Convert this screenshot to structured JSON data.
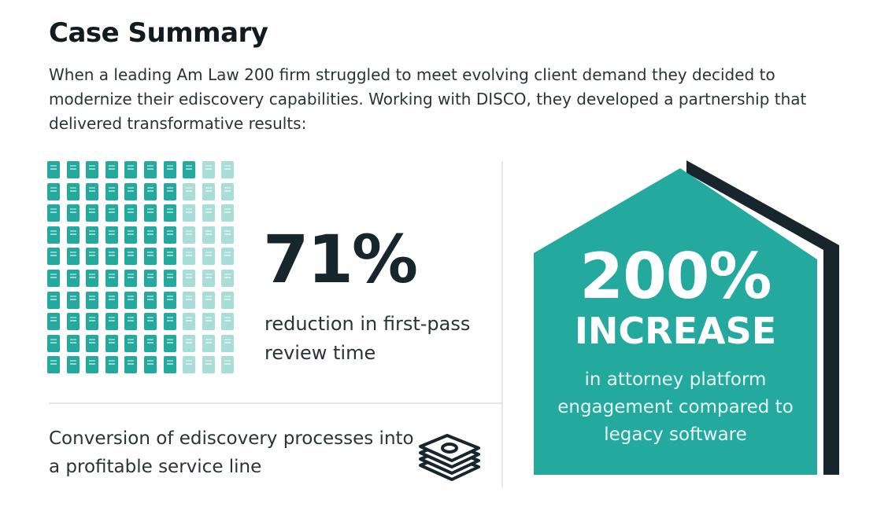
{
  "title": "Case Summary",
  "intro": "When a leading Am Law 200 firm struggled to meet evolving client demand they decided to modernize their ediscovery capabilities. Working with DISCO, they developed a partnership that delivered transformative results:",
  "stat1": {
    "value": "71%",
    "description": "reduction in first-pass review time",
    "grid_percent": 71
  },
  "stat2": {
    "description": "Conversion of ediscovery processes into a profitable service line",
    "icon": "money-stack-icon"
  },
  "stat3": {
    "value": "200%",
    "headline": "INCREASE",
    "description": "in attorney platform engagement compared to legacy software"
  },
  "colors": {
    "teal": "#23a99e",
    "teal_light": "#a9ddd8",
    "dark": "#17262d"
  }
}
